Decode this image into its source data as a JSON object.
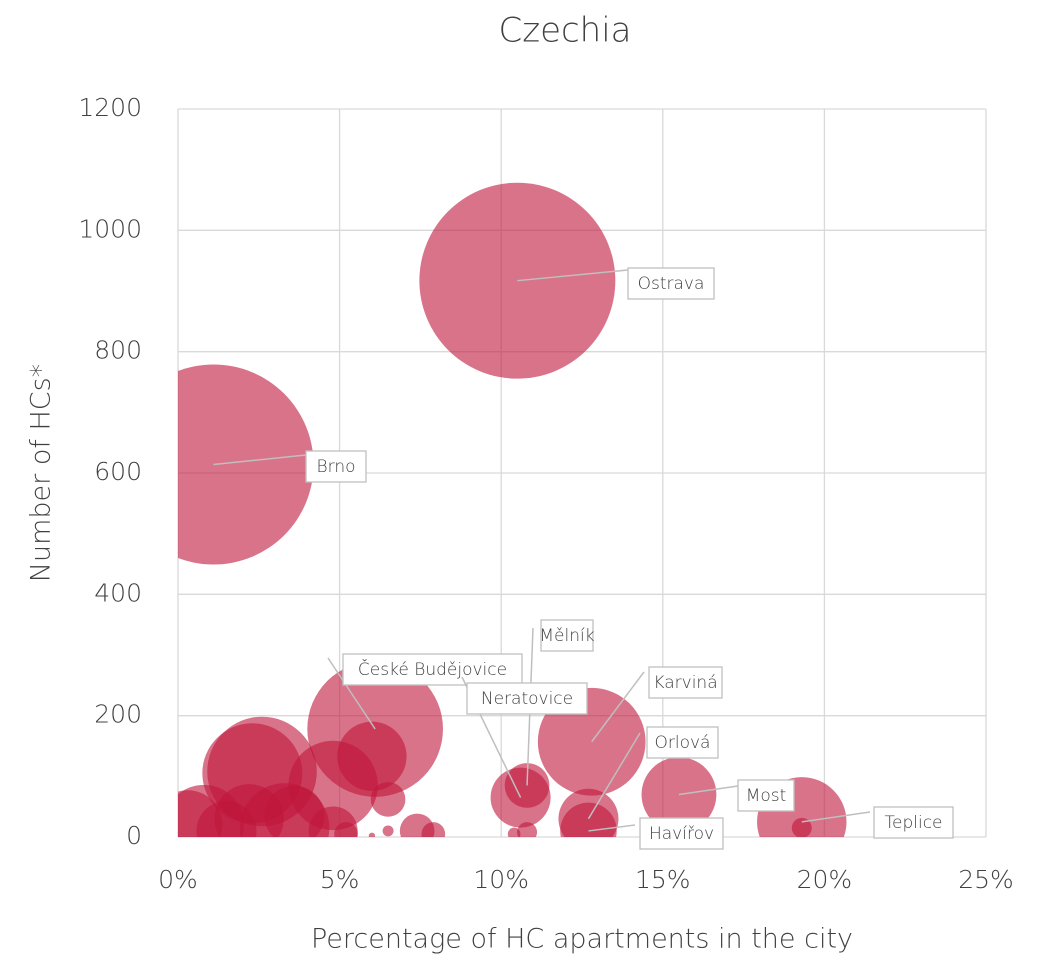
{
  "chart_data": {
    "type": "bubble",
    "title": "Czechia",
    "x_label": "Percentage of HC apartments in the city",
    "y_label": "Number of HCs*",
    "color": "#c0163a",
    "grid": true,
    "xlim": [
      0,
      25
    ],
    "xticks": [
      {
        "value": 0,
        "label": "0%"
      },
      {
        "value": 5,
        "label": "5%"
      },
      {
        "value": 10,
        "label": "10%"
      },
      {
        "value": 15,
        "label": "15%"
      },
      {
        "value": 20,
        "label": "20%"
      },
      {
        "value": 25,
        "label": "25%"
      }
    ],
    "ylim": [
      0,
      1200
    ],
    "yticks": [
      0,
      200,
      400,
      600,
      800,
      1000,
      1200
    ],
    "x": [
      10.5,
      1.1,
      6.1,
      6.0,
      2.6,
      2.3,
      4.8,
      6.5,
      10.8,
      10.6,
      12.8,
      12.7,
      12.7,
      15.5,
      19.3,
      19.3,
      0.8,
      0.3,
      2.2,
      3.6,
      3.3,
      4.8,
      5.2,
      7.4,
      7.9,
      10.8,
      10.4,
      6.5,
      6.0,
      1.5
    ],
    "values": [
      917,
      614,
      178,
      133,
      108,
      105,
      85,
      62,
      85,
      65,
      157,
      30,
      10,
      70,
      25,
      15,
      20,
      20,
      30,
      35,
      15,
      10,
      5,
      10,
      5,
      8,
      5,
      10,
      2,
      10
    ],
    "sizes": [
      96,
      100,
      46,
      12,
      30,
      25,
      20,
      3,
      5,
      9,
      29,
      9,
      8,
      14,
      20,
      1,
      16,
      12,
      12,
      9,
      20,
      6,
      1.4,
      3,
      1.4,
      1,
      0.4,
      0.3,
      0.1,
      9
    ],
    "labels": [
      "Ostrava",
      "Brno",
      "České Budějovice",
      null,
      null,
      null,
      null,
      null,
      "Mělník",
      "Neratovice",
      "Karviná",
      "Orlová",
      "Havířov",
      "Most",
      "Teplice",
      null,
      null,
      null,
      null,
      null,
      null,
      null,
      null,
      null,
      null,
      null,
      null,
      null,
      null,
      null
    ]
  }
}
